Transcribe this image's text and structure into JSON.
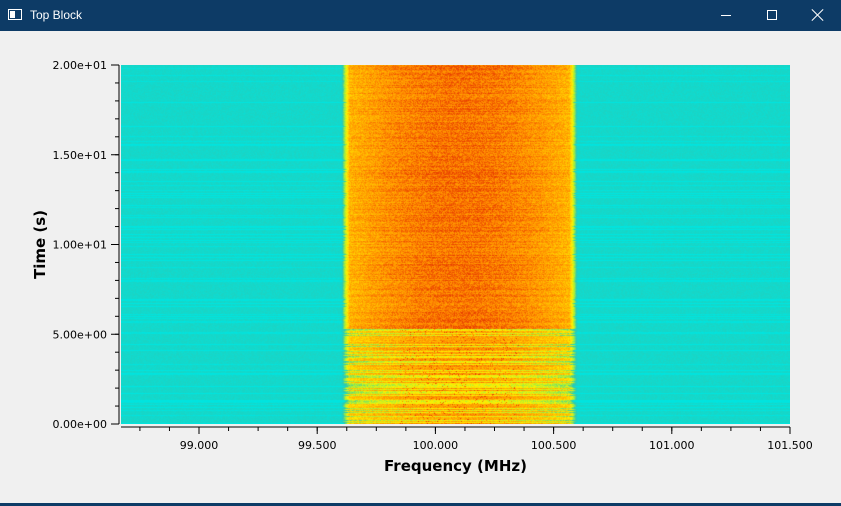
{
  "window": {
    "title": "Top Block",
    "icons": {
      "app": "app-window-icon",
      "minimize": "minimize-icon",
      "maximize": "maximize-icon",
      "close": "close-icon"
    }
  },
  "chart_data": {
    "type": "heatmap",
    "title": "",
    "xlabel": "Frequency (MHz)",
    "ylabel": "Time (s)",
    "xlim": [
      98.67,
      101.5
    ],
    "ylim": [
      0,
      20
    ],
    "x_ticks": [
      99.0,
      99.5,
      100.0,
      100.5,
      101.0,
      101.5
    ],
    "x_tick_labels": [
      "99.000",
      "99.500",
      "100.000",
      "100.500",
      "101.000",
      "101.500"
    ],
    "y_ticks": [
      0,
      5,
      10,
      15,
      20
    ],
    "y_tick_labels": [
      "0.00e+00",
      "5.00e+00",
      "1.00e+01",
      "1.50e+01",
      "2.00e+01"
    ],
    "signal_band_mhz": [
      99.6,
      100.6
    ],
    "signal_center_mhz": 100.1,
    "colormap": [
      "#00e5e0",
      "#2ec8b0",
      "#a8ee3a",
      "#fff200",
      "#ffc400",
      "#ff8c00",
      "#e83c00"
    ],
    "grid": false,
    "legend": "none"
  }
}
